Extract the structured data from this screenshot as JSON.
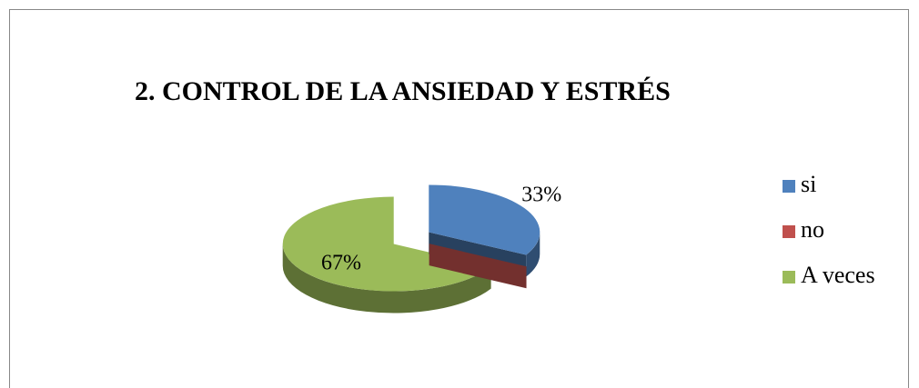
{
  "chart_data": {
    "type": "pie",
    "title": "2. CONTROL DE LA ANSIEDAD Y ESTRÉS",
    "categories": [
      "si",
      "no",
      "A veces"
    ],
    "values": [
      33,
      0,
      67
    ],
    "value_labels": [
      "33%",
      null,
      "67%"
    ],
    "colors": [
      "#4f81bd",
      "#c0504d",
      "#9bbb59"
    ],
    "legend": "right"
  }
}
